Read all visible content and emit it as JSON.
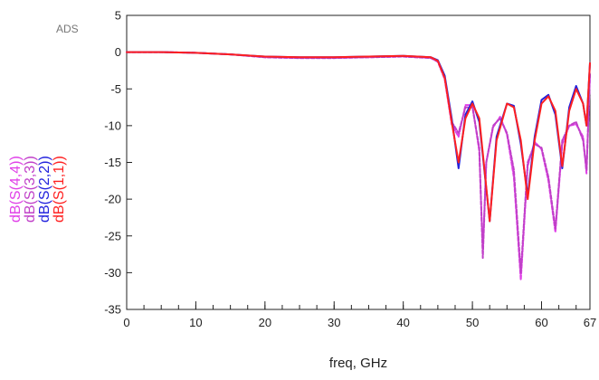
{
  "watermark": "ADS",
  "chart_data": {
    "type": "line",
    "xlabel": "freq, GHz",
    "ylabel": "",
    "xlim": [
      0,
      67
    ],
    "ylim": [
      -35,
      5
    ],
    "x_ticks": [
      0,
      10,
      20,
      30,
      40,
      50,
      60,
      67
    ],
    "y_ticks": [
      5,
      0,
      -5,
      -10,
      -15,
      -20,
      -25,
      -30,
      -35
    ],
    "grid": false,
    "legend_placement": "left, vertical",
    "series": [
      {
        "name": "dB(S(1,1))",
        "color": "#ff2020",
        "dash": "solid",
        "x": [
          0,
          5,
          10,
          15,
          20,
          25,
          30,
          35,
          40,
          44,
          45,
          46,
          47,
          48,
          49,
          50,
          51,
          52.5,
          53.5,
          55,
          56,
          57,
          58,
          59,
          60,
          61,
          62,
          63,
          64,
          65,
          66,
          66.5,
          67
        ],
        "y": [
          0,
          0,
          -0.1,
          -0.3,
          -0.6,
          -0.7,
          -0.7,
          -0.6,
          -0.5,
          -0.7,
          -1.2,
          -3.5,
          -9.5,
          -15,
          -9,
          -7,
          -9,
          -23,
          -12,
          -7,
          -7.5,
          -12,
          -20,
          -12,
          -7,
          -6,
          -8,
          -15.5,
          -8,
          -5,
          -7,
          -10,
          -1.5
        ]
      },
      {
        "name": "dB(S(2,2))",
        "color": "#2222dd",
        "dash": "solid",
        "x": [
          0,
          5,
          10,
          15,
          20,
          25,
          30,
          35,
          40,
          44,
          45,
          46,
          47,
          48,
          49,
          50,
          51,
          52.5,
          53.5,
          55,
          56,
          57,
          58,
          59,
          60,
          61,
          62,
          63,
          64,
          65,
          66,
          66.5,
          67
        ],
        "y": [
          0,
          0,
          -0.1,
          -0.3,
          -0.6,
          -0.7,
          -0.7,
          -0.6,
          -0.5,
          -0.7,
          -1.1,
          -3.2,
          -9,
          -15.8,
          -8.5,
          -6.7,
          -9.5,
          -23,
          -11.5,
          -7,
          -7.3,
          -12.5,
          -19.5,
          -11.5,
          -6.5,
          -5.8,
          -8.5,
          -15.8,
          -7.5,
          -4.6,
          -7,
          -10,
          -1.5
        ]
      },
      {
        "name": "dB(S(3,3))",
        "color": "#c040c8",
        "dash": "dashed",
        "x": [
          0,
          5,
          10,
          15,
          20,
          25,
          30,
          35,
          40,
          44,
          45,
          46,
          47,
          48,
          49,
          50,
          51,
          51.5,
          52,
          53,
          54,
          55,
          56,
          57,
          58,
          59,
          60,
          61,
          62,
          63,
          64,
          65,
          66,
          66.5,
          67
        ],
        "y": [
          0,
          0,
          -0.1,
          -0.3,
          -0.7,
          -0.8,
          -0.8,
          -0.7,
          -0.6,
          -0.8,
          -1.3,
          -3.5,
          -9.5,
          -11,
          -7.5,
          -7.5,
          -13,
          -28,
          -15,
          -10,
          -9,
          -11,
          -16,
          -30,
          -15,
          -12.5,
          -13,
          -17,
          -24,
          -12,
          -10,
          -9.5,
          -12,
          -16,
          -3
        ]
      },
      {
        "name": "dB(S(4,4))",
        "color": "#e040e8",
        "dash": "dashed",
        "x": [
          0,
          5,
          10,
          15,
          20,
          25,
          30,
          35,
          40,
          44,
          45,
          46,
          47,
          48,
          49,
          50,
          51,
          51.5,
          52,
          53,
          54,
          55,
          56,
          57,
          58,
          59,
          60,
          61,
          62,
          63,
          64,
          65,
          66,
          66.5,
          67
        ],
        "y": [
          0,
          0,
          -0.1,
          -0.3,
          -0.7,
          -0.8,
          -0.8,
          -0.7,
          -0.6,
          -0.8,
          -1.3,
          -3.7,
          -9.8,
          -11.5,
          -7.2,
          -7.2,
          -13.5,
          -27,
          -15,
          -10.2,
          -8.8,
          -11.2,
          -17,
          -31,
          -15.5,
          -12.2,
          -13.2,
          -17.5,
          -24.5,
          -12.5,
          -10,
          -9.8,
          -11.5,
          -16.5,
          -3.2
        ]
      }
    ]
  }
}
